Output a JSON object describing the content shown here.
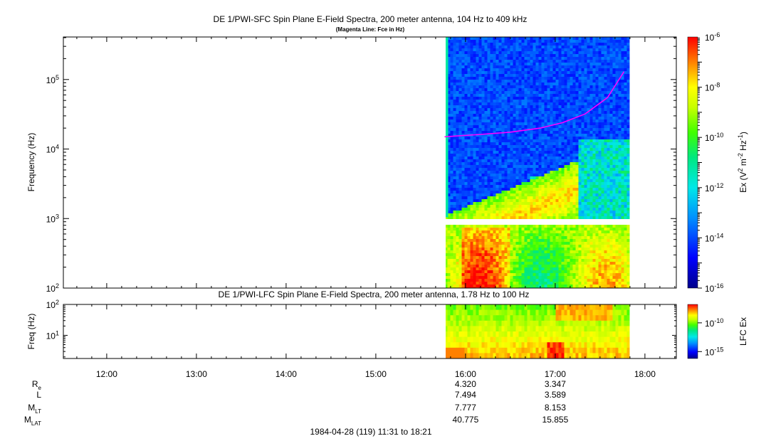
{
  "title": "DE 1/PWI-SFC  Spin Plane E-Field Spectra, 200 meter antenna, 104 Hz to 409 kHz",
  "subtitle": "(Magenta Line: Fce in Hz)",
  "time_range_label": "1984-04-28 (119) 11:31 to 18:21",
  "colors": {
    "fce_line": "#ff00ff",
    "background": "#ffffff",
    "axis": "#000000"
  },
  "chart_data": [
    {
      "type": "heatmap",
      "title": "DE 1/PWI-SFC  Spin Plane E-Field Spectra, 200 meter antenna, 104 Hz to 409 kHz",
      "subtitle": "(Magenta Line: Fce in Hz)",
      "ylabel": "Frequency (Hz)",
      "yscale": "log",
      "ylim": [
        100,
        409000
      ],
      "y_ticks": [
        {
          "value": 100,
          "base": "10",
          "exp": "2"
        },
        {
          "value": 1000,
          "base": "10",
          "exp": "3"
        },
        {
          "value": 10000,
          "base": "10",
          "exp": "4"
        },
        {
          "value": 100000,
          "base": "10",
          "exp": "5"
        }
      ],
      "data_time_range": [
        "15:46",
        "17:49"
      ],
      "data_gap_frequency_hz": 950,
      "colorbar": {
        "label_parts": [
          "Ex (V",
          "2",
          " m",
          "-2",
          " Hz",
          "-1",
          ")"
        ],
        "scale": "log",
        "range": [
          1e-16,
          1e-06
        ],
        "ticks": [
          {
            "value": 1e-06,
            "base": "10",
            "exp": "-6"
          },
          {
            "value": 1e-08,
            "base": "10",
            "exp": "-8"
          },
          {
            "value": 1e-10,
            "base": "10",
            "exp": "-10"
          },
          {
            "value": 1e-12,
            "base": "10",
            "exp": "-12"
          },
          {
            "value": 1e-14,
            "base": "10",
            "exp": "-14"
          },
          {
            "value": 1e-16,
            "base": "10",
            "exp": "-16"
          }
        ]
      },
      "fce_line": {
        "name": "Fce",
        "points": [
          {
            "t": "15:46",
            "hz": 15000
          },
          {
            "t": "16:10",
            "hz": 16200
          },
          {
            "t": "16:30",
            "hz": 17500
          },
          {
            "t": "16:50",
            "hz": 20000
          },
          {
            "t": "17:05",
            "hz": 24000
          },
          {
            "t": "17:20",
            "hz": 32000
          },
          {
            "t": "17:35",
            "hz": 55000
          },
          {
            "t": "17:46",
            "hz": 130000
          }
        ]
      }
    },
    {
      "type": "heatmap",
      "title": "DE 1/PWI-LFC  Spin Plane E-Field Spectra, 200 meter antenna, 1.78 Hz to 100 Hz",
      "ylabel": "Freq (Hz)",
      "yscale": "log",
      "ylim": [
        1.78,
        100
      ],
      "y_ticks": [
        {
          "value": 10,
          "base": "10",
          "exp": "1"
        },
        {
          "value": 100,
          "base": "10",
          "exp": "2"
        }
      ],
      "data_time_range": [
        "15:46",
        "17:49"
      ],
      "colorbar": {
        "label": "LFC Ex",
        "scale": "log",
        "ticks": [
          {
            "value": 1e-10,
            "base": "10",
            "exp": "-10"
          },
          {
            "value": 1e-15,
            "base": "10",
            "exp": "-15"
          }
        ]
      }
    }
  ],
  "x_axis": {
    "ticks": [
      "12:00",
      "13:00",
      "14:00",
      "15:00",
      "16:00",
      "17:00",
      "18:00"
    ],
    "range": [
      "11:31",
      "18:21"
    ]
  },
  "ephemeris": {
    "rows": [
      {
        "label": "R",
        "sub": "e",
        "values": [
          "4.320",
          "3.347"
        ]
      },
      {
        "label": "L",
        "sub": "",
        "values": [
          "7.494",
          "3.589"
        ]
      },
      {
        "label": "M",
        "sub": "LT",
        "values": [
          "7.777",
          "8.153"
        ]
      },
      {
        "label": "M",
        "sub": "LAT",
        "values": [
          "40.775",
          "15.855"
        ]
      }
    ],
    "at_times": [
      "16:00",
      "17:00"
    ]
  }
}
